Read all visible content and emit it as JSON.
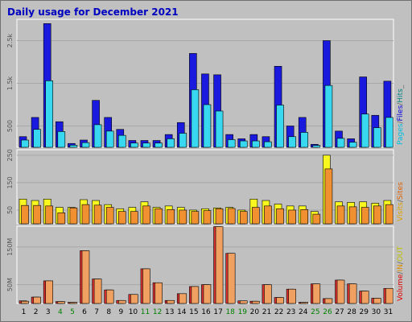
{
  "title": "Daily usage for December 2021",
  "chart_data": [
    {
      "type": "bar",
      "panel": "pages-files-hits",
      "legend": [
        {
          "text": "Pages",
          "color": "#00c0e0"
        },
        {
          "text": "/",
          "color": "#606060"
        },
        {
          "text": "Files",
          "color": "#0000e0"
        },
        {
          "text": "/",
          "color": "#606060"
        },
        {
          "text": "Hits",
          "color": "#008080"
        },
        {
          "text": "_",
          "color": "#606060"
        }
      ],
      "y_ticks": [
        {
          "value": 500,
          "label": "500"
        },
        {
          "value": 1500,
          "label": "1.5k"
        },
        {
          "value": 2500,
          "label": "2.5k"
        }
      ],
      "ylim": [
        0,
        3000
      ],
      "series": [
        {
          "name": "Files",
          "color": "#1a1adf",
          "values": [
            250,
            700,
            2900,
            600,
            90,
            170,
            1100,
            700,
            420,
            160,
            160,
            160,
            300,
            580,
            2200,
            1720,
            1700,
            300,
            200,
            300,
            250,
            1900,
            500,
            700,
            70,
            2500,
            380,
            200,
            1650,
            750,
            1550
          ]
        },
        {
          "name": "Pages",
          "color": "#38d8f0",
          "values": [
            170,
            420,
            1560,
            370,
            50,
            110,
            530,
            380,
            280,
            100,
            100,
            100,
            200,
            330,
            1350,
            1000,
            850,
            180,
            150,
            150,
            130,
            990,
            250,
            350,
            45,
            1450,
            210,
            120,
            780,
            460,
            700
          ]
        }
      ]
    },
    {
      "type": "bar",
      "panel": "visits-sites",
      "legend": [
        {
          "text": "Visits",
          "color": "#e0a000"
        },
        {
          "text": "/",
          "color": "#606060"
        },
        {
          "text": "Sites",
          "color": "#e06000"
        }
      ],
      "y_ticks": [
        {
          "value": 50,
          "label": "50"
        },
        {
          "value": 150,
          "label": "150"
        },
        {
          "value": 250,
          "label": "250"
        }
      ],
      "ylim": [
        0,
        270
      ],
      "series": [
        {
          "name": "Visits",
          "color": "#f8f820",
          "values": [
            90,
            85,
            90,
            60,
            60,
            88,
            85,
            70,
            55,
            60,
            80,
            60,
            65,
            60,
            50,
            55,
            58,
            60,
            50,
            90,
            85,
            72,
            65,
            65,
            45,
            250,
            80,
            78,
            80,
            75,
            85
          ]
        },
        {
          "name": "Sites",
          "color": "#f09030",
          "values": [
            67,
            67,
            65,
            40,
            58,
            70,
            68,
            60,
            45,
            45,
            65,
            55,
            52,
            50,
            45,
            48,
            55,
            56,
            45,
            60,
            65,
            55,
            50,
            52,
            35,
            200,
            65,
            62,
            60,
            65,
            70
          ]
        }
      ]
    },
    {
      "type": "bar",
      "panel": "volume",
      "legend": [
        {
          "text": "Volume",
          "color": "#e00000"
        },
        {
          "text": "/",
          "color": "#606060"
        },
        {
          "text": "IN",
          "color": "#e09000"
        },
        {
          "text": "/",
          "color": "#606060"
        },
        {
          "text": "OUT",
          "color": "#c0c000"
        }
      ],
      "y_ticks": [
        {
          "value": 50,
          "label": "50M"
        },
        {
          "value": 150,
          "label": "150M"
        }
      ],
      "ylim": [
        0,
        205
      ],
      "series": [
        {
          "name": "Volume",
          "color": "#e03030",
          "values": [
            7,
            17,
            60,
            5,
            3,
            140,
            65,
            36,
            8,
            24,
            92,
            55,
            8,
            26,
            45,
            50,
            204,
            133,
            7,
            6,
            50,
            16,
            38,
            3,
            52,
            13,
            62,
            52,
            33,
            14,
            40
          ]
        },
        {
          "name": "OUT",
          "color": "#f0a060",
          "values": [
            6,
            17,
            60,
            5,
            3,
            140,
            65,
            36,
            8,
            24,
            92,
            55,
            8,
            26,
            45,
            50,
            204,
            133,
            7,
            6,
            50,
            16,
            38,
            3,
            52,
            13,
            62,
            52,
            33,
            14,
            40
          ]
        }
      ]
    }
  ],
  "x_days": [
    "1",
    "2",
    "3",
    "4",
    "5",
    "6",
    "7",
    "8",
    "9",
    "10",
    "11",
    "12",
    "13",
    "14",
    "15",
    "16",
    "17",
    "18",
    "19",
    "20",
    "21",
    "22",
    "23",
    "24",
    "25",
    "26",
    "27",
    "28",
    "29",
    "30",
    "31"
  ],
  "weekend_days": [
    4,
    5,
    11,
    12,
    18,
    19,
    25,
    26
  ],
  "colors": {
    "weekday": "#000000",
    "weekend": "#008000"
  }
}
